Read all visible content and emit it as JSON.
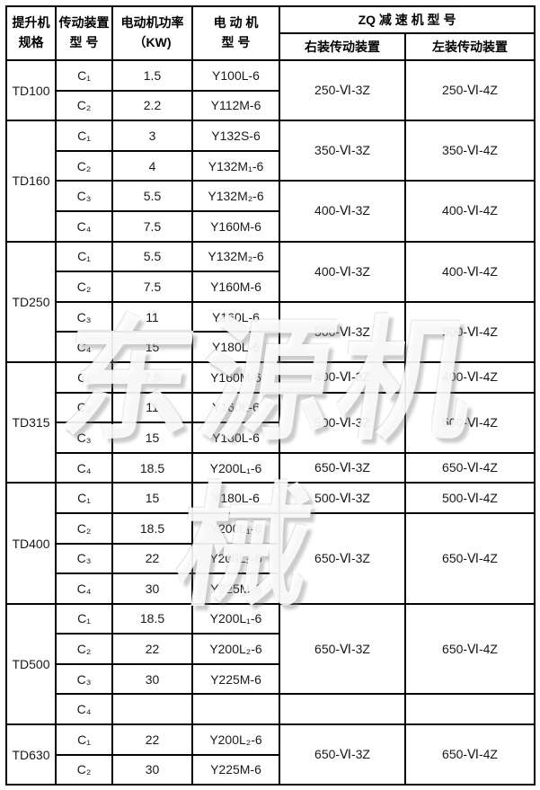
{
  "watermark": {
    "text": "东源机械"
  },
  "header": {
    "spec_line1": "提升机",
    "spec_line2": "规格",
    "drive_line1": "传动装置",
    "drive_line2": "型  号",
    "power_line1": "电动机功率",
    "power_line2": "（KW)",
    "motor_line1": "电 动 机",
    "motor_line2": "型  号",
    "zq_title": "ZQ 减 速 机 型 号",
    "right_label": "右装传动装置",
    "left_label": "左装传动装置"
  },
  "groups": [
    {
      "spec": "TD100",
      "rows": [
        {
          "c": "C₁",
          "kw": "1.5",
          "motor": "Y100L-6"
        },
        {
          "c": "C₂",
          "kw": "2.2",
          "motor": "Y112M-6"
        }
      ],
      "reducers": [
        {
          "span": 2,
          "right": "250-Ⅵ-3Z",
          "left": "250-Ⅵ-4Z"
        }
      ]
    },
    {
      "spec": "TD160",
      "rows": [
        {
          "c": "C₁",
          "kw": "3",
          "motor": "Y132S-6"
        },
        {
          "c": "C₂",
          "kw": "4",
          "motor": "Y132M₁-6"
        },
        {
          "c": "C₃",
          "kw": "5.5",
          "motor": "Y132M₂-6"
        },
        {
          "c": "C₄",
          "kw": "7.5",
          "motor": "Y160M-6"
        }
      ],
      "reducers": [
        {
          "span": 2,
          "right": "350-Ⅵ-3Z",
          "left": "350-Ⅵ-4Z"
        },
        {
          "span": 2,
          "right": "400-Ⅵ-3Z",
          "left": "400-Ⅵ-4Z"
        }
      ]
    },
    {
      "spec": "TD250",
      "rows": [
        {
          "c": "C₁",
          "kw": "5.5",
          "motor": "Y132M₂-6"
        },
        {
          "c": "C₂",
          "kw": "7.5",
          "motor": "Y160M-6"
        },
        {
          "c": "C₃",
          "kw": "11",
          "motor": "Y160L-6"
        },
        {
          "c": "C₄",
          "kw": "15",
          "motor": "Y180L-6"
        }
      ],
      "reducers": [
        {
          "span": 2,
          "right": "400-Ⅵ-3Z",
          "left": "400-Ⅵ-4Z"
        },
        {
          "span": 2,
          "right": "500-Ⅵ-3Z",
          "left": "500-Ⅵ-4Z"
        }
      ]
    },
    {
      "spec": "TD315",
      "rows": [
        {
          "c": "C₁",
          "kw": "7.5",
          "motor": "Y160M-6"
        },
        {
          "c": "C₂",
          "kw": "11",
          "motor": "Y160L-6"
        },
        {
          "c": "C₃",
          "kw": "15",
          "motor": "Y180L-6"
        },
        {
          "c": "C₄",
          "kw": "18.5",
          "motor": "Y200L₁-6"
        }
      ],
      "reducers": [
        {
          "span": 1,
          "right": "400-Ⅵ-3Z",
          "left": "400-Ⅵ-4Z"
        },
        {
          "span": 2,
          "right": "500-Ⅵ-3Z",
          "left": "500-Ⅵ-4Z"
        },
        {
          "span": 1,
          "right": "650-Ⅵ-3Z",
          "left": "650-Ⅵ-4Z"
        }
      ]
    },
    {
      "spec": "TD400",
      "rows": [
        {
          "c": "C₁",
          "kw": "15",
          "motor": "Y180L-6"
        },
        {
          "c": "C₂",
          "kw": "18.5",
          "motor": "Y200L₁-6"
        },
        {
          "c": "C₃",
          "kw": "22",
          "motor": "Y200L₂-6"
        },
        {
          "c": "C₄",
          "kw": "30",
          "motor": "Y225M-6"
        }
      ],
      "reducers": [
        {
          "span": 1,
          "right": "500-Ⅵ-3Z",
          "left": "500-Ⅵ-4Z"
        },
        {
          "span": 3,
          "right": "650-Ⅵ-3Z",
          "left": "650-Ⅵ-4Z"
        }
      ]
    },
    {
      "spec": "TD500",
      "rows": [
        {
          "c": "C₁",
          "kw": "18.5",
          "motor": "Y200L₁-6"
        },
        {
          "c": "C₂",
          "kw": "22",
          "motor": "Y200L₂-6"
        },
        {
          "c": "C₃",
          "kw": "30",
          "motor": "Y225M-6"
        },
        {
          "c": "C₄",
          "kw": "",
          "motor": ""
        }
      ],
      "reducers": [
        {
          "span": 3,
          "right": "650-Ⅵ-3Z",
          "left": "650-Ⅵ-4Z"
        },
        {
          "span": 1,
          "right": "",
          "left": ""
        }
      ]
    },
    {
      "spec": "TD630",
      "rows": [
        {
          "c": "C₁",
          "kw": "22",
          "motor": "Y200L₂-6"
        },
        {
          "c": "C₂",
          "kw": "30",
          "motor": "Y225M-6"
        }
      ],
      "reducers": [
        {
          "span": 2,
          "right": "650-Ⅵ-3Z",
          "left": "650-Ⅵ-4Z"
        }
      ]
    }
  ]
}
